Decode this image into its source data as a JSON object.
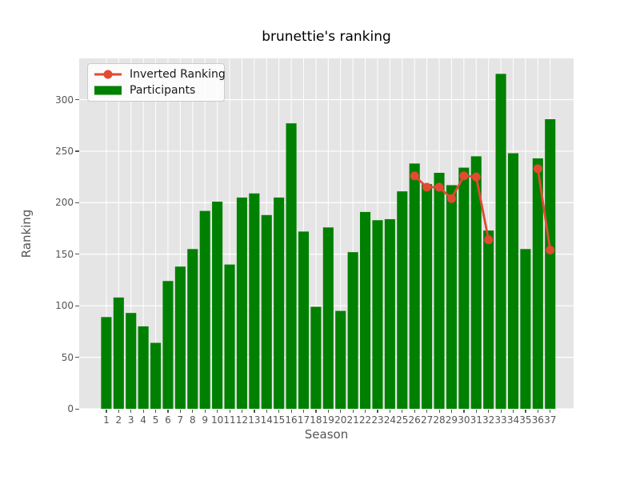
{
  "title": "brunettie's ranking",
  "chart_data": {
    "type": "bar+line",
    "title": "brunettie's ranking",
    "xlabel": "Season",
    "ylabel": "Ranking",
    "x": [
      1,
      2,
      3,
      4,
      5,
      6,
      7,
      8,
      9,
      10,
      11,
      12,
      13,
      14,
      15,
      16,
      17,
      18,
      19,
      20,
      21,
      22,
      23,
      24,
      25,
      26,
      27,
      28,
      29,
      30,
      31,
      32,
      33,
      34,
      35,
      36,
      37
    ],
    "series": [
      {
        "name": "Inverted Ranking",
        "type": "line",
        "color": "#E24A33",
        "values": [
          null,
          null,
          null,
          null,
          null,
          null,
          null,
          null,
          null,
          null,
          null,
          null,
          null,
          null,
          null,
          null,
          null,
          null,
          null,
          null,
          null,
          null,
          null,
          null,
          null,
          226,
          215,
          215,
          204,
          226,
          225,
          164,
          null,
          null,
          null,
          233,
          154
        ]
      },
      {
        "name": "Participants",
        "type": "bar",
        "color": "#008000",
        "values": [
          89,
          108,
          93,
          80,
          64,
          124,
          138,
          155,
          192,
          201,
          140,
          205,
          209,
          188,
          205,
          277,
          172,
          99,
          176,
          95,
          152,
          191,
          183,
          184,
          211,
          238,
          218,
          229,
          217,
          234,
          245,
          173,
          325,
          248,
          155,
          243,
          281
        ]
      }
    ],
    "ylim": [
      0,
      340
    ],
    "xlim": [
      -1.2,
      38.9
    ],
    "yticks": [
      0,
      50,
      100,
      150,
      200,
      250,
      300
    ],
    "grid": true,
    "legend_position": "upper left",
    "plot_bg_color": "#e5e5e5",
    "grid_color": "#ffffff",
    "tick_color": "#555555",
    "bar_width_data_units": 0.85,
    "marker_radius": 5.5,
    "line_width": 2.8
  }
}
